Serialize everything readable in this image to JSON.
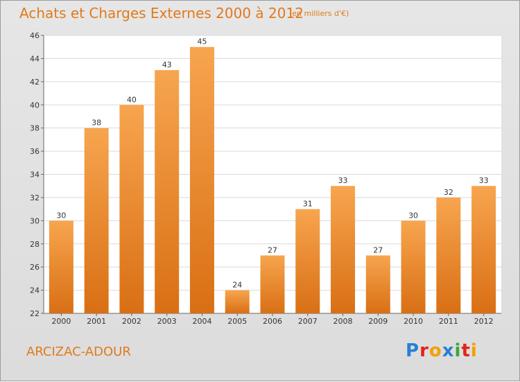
{
  "header": {
    "title": "Achats et Charges Externes 2000 à 2012",
    "subtitle": "(en milliers d'€)"
  },
  "footer": {
    "commune": "ARCIZAC-ADOUR",
    "logo_text": "Proxiti"
  },
  "colors": {
    "accent": "#e07a1c",
    "bar_light": "#f7a54f",
    "bar_dark": "#d96f14",
    "plot_bg": "#ffffff",
    "grid": "#d9d9d9"
  },
  "chart_data": {
    "type": "bar",
    "title": "Achats et Charges Externes 2000 à 2012",
    "subtitle": "(en milliers d'€)",
    "xlabel": "",
    "ylabel": "",
    "categories": [
      "2000",
      "2001",
      "2002",
      "2003",
      "2004",
      "2005",
      "2006",
      "2007",
      "2008",
      "2009",
      "2010",
      "2011",
      "2012"
    ],
    "values": [
      30,
      38,
      40,
      43,
      45,
      24,
      27,
      31,
      33,
      27,
      30,
      32,
      33
    ],
    "ylim": [
      22,
      46
    ],
    "yticks": [
      22,
      24,
      26,
      28,
      30,
      32,
      34,
      36,
      38,
      40,
      42,
      44,
      46
    ],
    "grid": true,
    "legend": "none"
  }
}
